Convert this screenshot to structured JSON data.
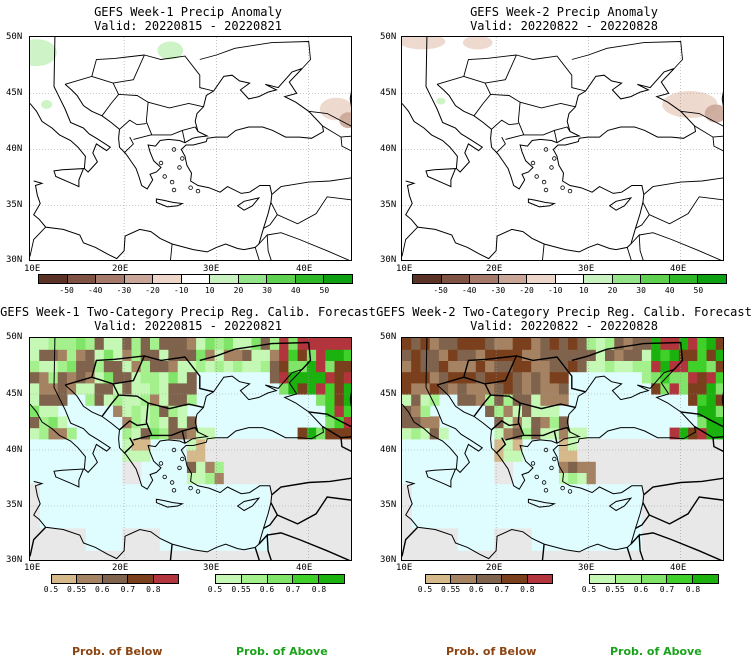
{
  "panels": [
    {
      "title": "GEFS Week-1 Precip Anomaly",
      "valid": "Valid: 20220815 - 20220821",
      "kind": "anomaly",
      "variant": 1
    },
    {
      "title": "GEFS Week-2 Precip Anomaly",
      "valid": "Valid: 20220822 - 20220828",
      "kind": "anomaly",
      "variant": 2
    },
    {
      "title": "GEFS Week-1 Two-Category Precip Reg. Calib. Forecast",
      "valid": "Valid: 20220815 - 20220821",
      "kind": "prob",
      "variant": 1
    },
    {
      "title": "GEFS Week-2 Two-Category Precip Reg. Calib. Forecast",
      "valid": "Valid: 20220822 - 20220828",
      "kind": "prob",
      "variant": 2
    }
  ],
  "axes": {
    "lat_labels": [
      "50N",
      "45N",
      "40N",
      "35N",
      "30N"
    ],
    "lon_labels": [
      "10E",
      "20E",
      "30E",
      "40E"
    ]
  },
  "anomaly_colorbar": {
    "labels": [
      "-50",
      "-40",
      "-30",
      "-20",
      "-10",
      "10",
      "20",
      "30",
      "40",
      "50"
    ],
    "colors": [
      "#5a3326",
      "#7f5243",
      "#a57a6b",
      "#c9a698",
      "#ecd5c9",
      "#ffffff",
      "#c8f2c0",
      "#94e489",
      "#5ed150",
      "#2fb828",
      "#0e9f12"
    ]
  },
  "prob_colorbar_below": {
    "labels": [
      "0.5",
      "0.55",
      "0.6",
      "0.7",
      "0.8"
    ],
    "colors": [
      "#d5b98a",
      "#a58262",
      "#80634d",
      "#7a3f1c",
      "#b2343c"
    ],
    "caption": "Prob. of Below",
    "caption_color": "#8b4513"
  },
  "prob_colorbar_above": {
    "labels": [
      "0.5",
      "0.55",
      "0.6",
      "0.7",
      "0.8"
    ],
    "colors": [
      "#c5f8b5",
      "#a3f08d",
      "#80e468",
      "#40d02a",
      "#1bb10e"
    ],
    "caption": "Prob. of Above",
    "caption_color": "#1aa31a"
  },
  "colors": {
    "sea": "#dffcff",
    "land_nodata": "#e8e8e8",
    "border": "#000000"
  }
}
